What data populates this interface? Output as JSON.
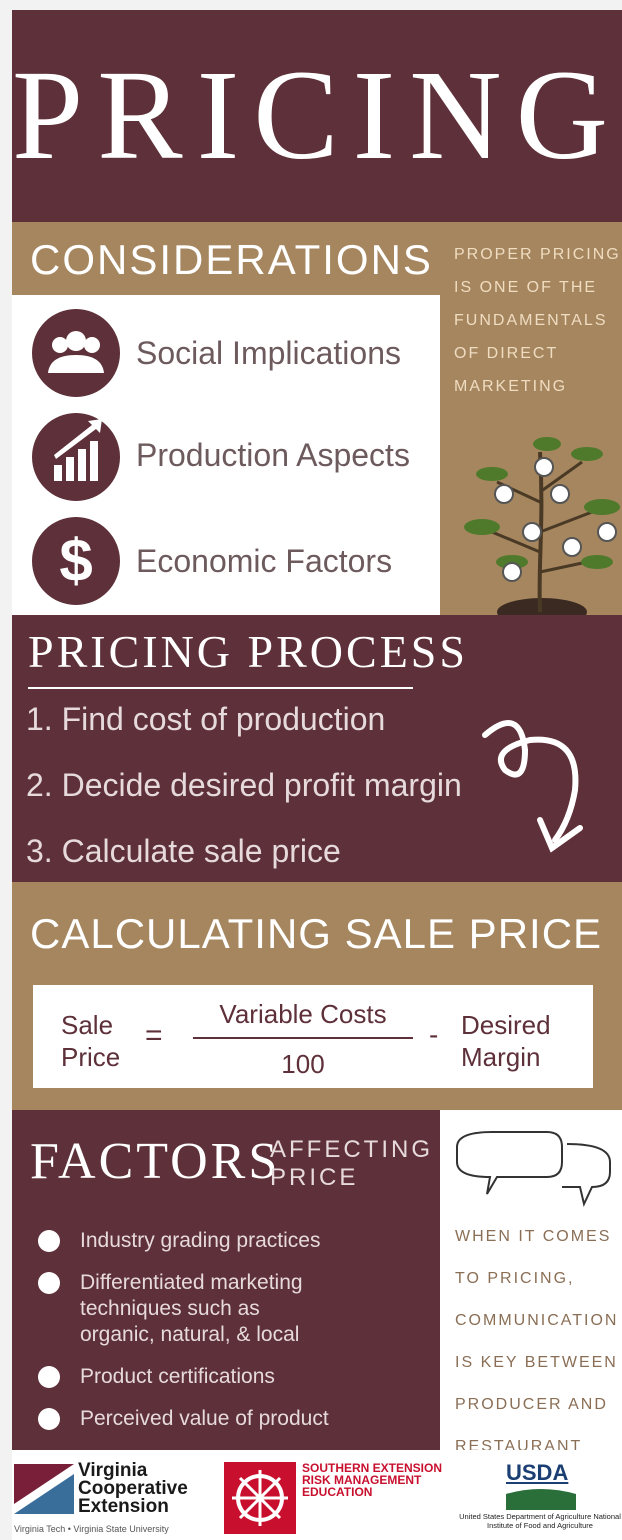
{
  "header": {
    "title": "PRICING"
  },
  "considerations": {
    "title": "CONSIDERATIONS",
    "items": [
      "Social Implications",
      "Production Aspects",
      "Economic Factors"
    ],
    "note": "PROPER PRICING IS ONE OF THE FUNDAMENTALS OF DIRECT MARKETING"
  },
  "process": {
    "title": "PRICING PROCESS",
    "steps": [
      "1. Find cost of production",
      "2. Decide desired profit margin",
      "3. Calculate sale price"
    ]
  },
  "calculation": {
    "title": "CALCULATING SALE PRICE",
    "formula": {
      "left": "Sale Price",
      "equals": "=",
      "numerator": "Variable Costs",
      "denominator": "100",
      "minus": "-",
      "right": "Desired Margin"
    }
  },
  "factors": {
    "title": "FACTORS",
    "subtitle": "AFFECTING PRICE",
    "items": [
      "Industry grading practices",
      "Differentiated marketing techniques such as organic, natural, & local",
      "Product certifications",
      "Perceived value of product"
    ],
    "note": "WHEN IT COMES TO PRICING, COMMUNICATION IS KEY BETWEEN PRODUCER AND RESTAURANT"
  },
  "footer": {
    "vce": {
      "name": "Virginia Cooperative Extension",
      "sub": "Virginia Tech • Virginia State University"
    },
    "srme": "SOUTHERN EXTENSION RISK MANAGEMENT EDUCATION",
    "usda": {
      "name": "USDA",
      "sub": "United States Department of Agriculture National Institute of Food and Agriculture"
    }
  }
}
